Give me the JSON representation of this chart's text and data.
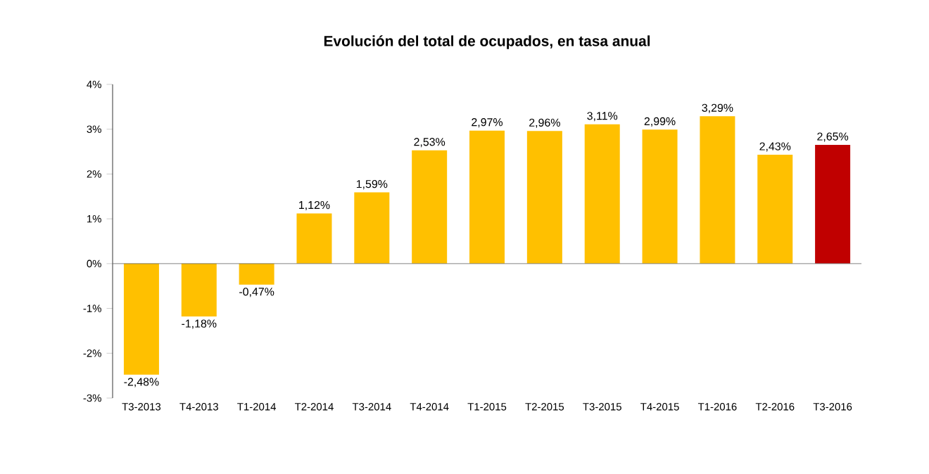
{
  "chart_data": {
    "type": "bar",
    "title": "Evolución del total de ocupados, en tasa anual",
    "categories": [
      "T3-2013",
      "T4-2013",
      "T1-2014",
      "T2-2014",
      "T3-2014",
      "T4-2014",
      "T1-2015",
      "T2-2015",
      "T3-2015",
      "T4-2015",
      "T1-2016",
      "T2-2016",
      "T3-2016"
    ],
    "values": [
      -2.48,
      -1.18,
      -0.47,
      1.12,
      1.59,
      2.53,
      2.97,
      2.96,
      3.11,
      2.99,
      3.29,
      2.43,
      2.65
    ],
    "value_labels": [
      "-2,48%",
      "-1,18%",
      "-0,47%",
      "1,12%",
      "1,59%",
      "2,53%",
      "2,97%",
      "2,96%",
      "3,11%",
      "2,99%",
      "3,29%",
      "2,43%",
      "2,65%"
    ],
    "colors": [
      "#ffc000",
      "#ffc000",
      "#ffc000",
      "#ffc000",
      "#ffc000",
      "#ffc000",
      "#ffc000",
      "#ffc000",
      "#ffc000",
      "#ffc000",
      "#ffc000",
      "#ffc000",
      "#c00000"
    ],
    "ylim": [
      -3,
      4
    ],
    "yticks": [
      {
        "value": -3,
        "label": "-3%"
      },
      {
        "value": -2,
        "label": "-2%"
      },
      {
        "value": -1,
        "label": "-1%"
      },
      {
        "value": 0,
        "label": "0%"
      },
      {
        "value": 1,
        "label": "1%"
      },
      {
        "value": 2,
        "label": "2%"
      },
      {
        "value": 3,
        "label": "3%"
      },
      {
        "value": 4,
        "label": "4%"
      }
    ]
  }
}
